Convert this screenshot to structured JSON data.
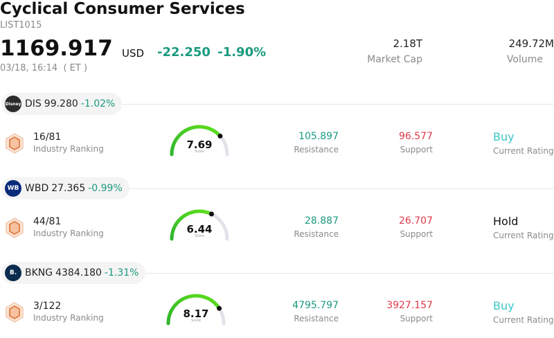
{
  "header": {
    "title": "Cyclical Consumer Services",
    "code": "LIST1015",
    "price": "1169.917",
    "currency": "USD",
    "change": "-22.250",
    "change_pct": "-1.90%",
    "timestamp": "03/18, 16:14  ( ET )",
    "market_cap_value": "2.18T",
    "market_cap_label": "Market Cap",
    "volume_value": "249.72M",
    "volume_label": "Volume"
  },
  "colors": {
    "up_green": "#1a9a7f",
    "down_red": "#e0394a",
    "buy_teal": "#3cc6c6",
    "gauge_track": "#e2e2ea"
  },
  "stocks": [
    {
      "ticker": "DIS",
      "price": "99.280",
      "change_pct": "-1.02%",
      "logo_icon": "disney-logo-icon",
      "logo_color": "#2b2b2b",
      "logo_text": "Disney",
      "rank": "16/81",
      "rank_label": "Industry Ranking",
      "score": "7.69",
      "score_fraction": 0.769,
      "score_label": "Score",
      "resistance": "105.897",
      "resistance_label": "Resistance",
      "support": "96.577",
      "support_label": "Support",
      "rating": "Buy",
      "rating_label": "Current Rating",
      "rating_color": "#3cc6c6"
    },
    {
      "ticker": "WBD",
      "price": "27.365",
      "change_pct": "-0.99%",
      "logo_icon": "wb-shield-logo-icon",
      "logo_color": "#0a2a7a",
      "logo_text": "WB",
      "rank": "44/81",
      "rank_label": "Industry Ranking",
      "score": "6.44",
      "score_fraction": 0.644,
      "score_label": "Score",
      "resistance": "28.887",
      "resistance_label": "Resistance",
      "support": "26.707",
      "support_label": "Support",
      "rating": "Hold",
      "rating_label": "Current Rating",
      "rating_color": "#111111"
    },
    {
      "ticker": "BKNG",
      "price": "4384.180",
      "change_pct": "-1.31%",
      "logo_icon": "booking-logo-icon",
      "logo_color": "#0b2c4e",
      "logo_text": "B.",
      "rank": "3/122",
      "rank_label": "Industry Ranking",
      "score": "8.17",
      "score_fraction": 0.817,
      "score_label": "Score",
      "resistance": "4795.797",
      "resistance_label": "Resistance",
      "support": "3927.157",
      "support_label": "Support",
      "rating": "Buy",
      "rating_label": "Current Rating",
      "rating_color": "#3cc6c6"
    }
  ]
}
